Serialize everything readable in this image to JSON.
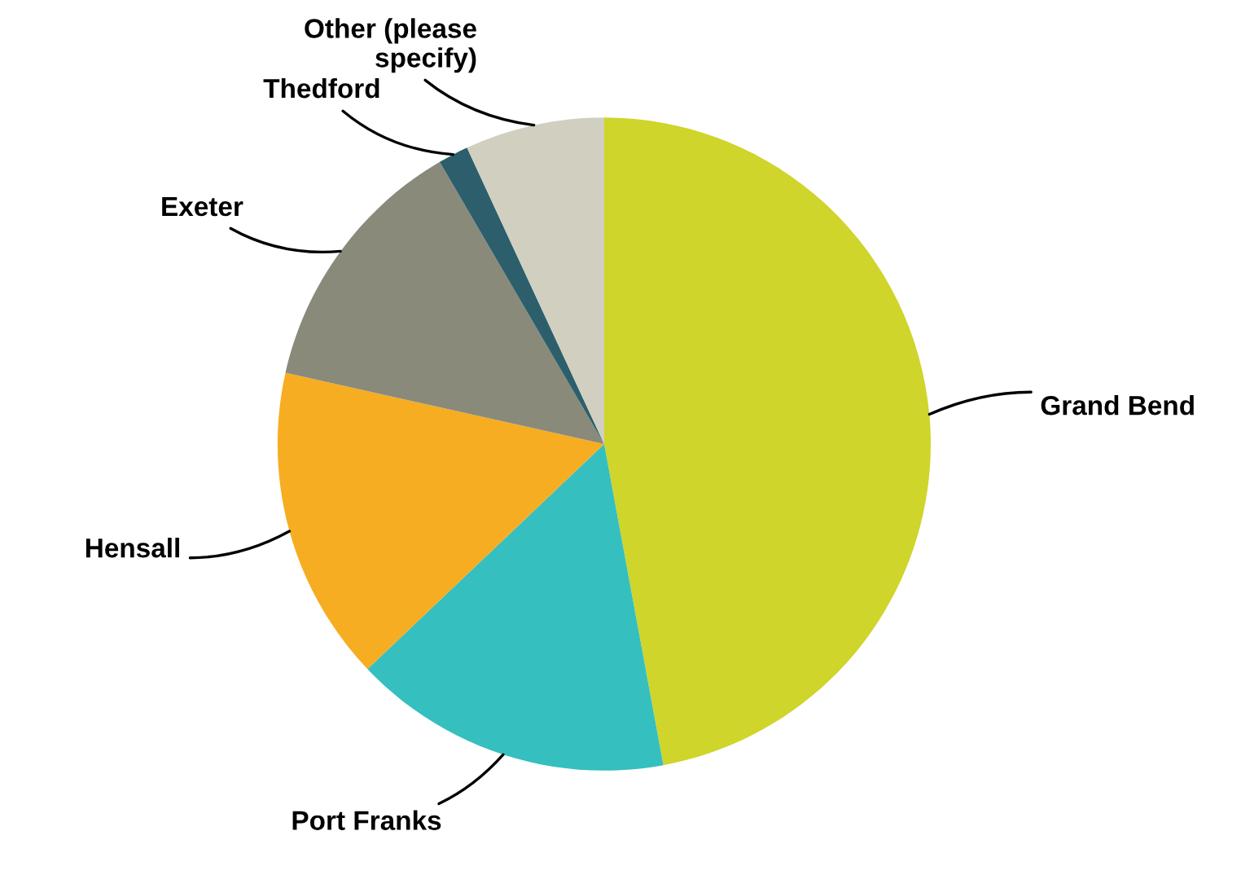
{
  "chart_data": {
    "type": "pie",
    "categories": [
      "Grand Bend",
      "Port Franks",
      "Hensall",
      "Exeter",
      "Thedford",
      "Other (please specify)"
    ],
    "values": [
      47.1,
      15.8,
      15.6,
      13.1,
      1.5,
      6.9
    ],
    "colors": [
      "#cfd52a",
      "#35bfbf",
      "#f6ad22",
      "#898a7a",
      "#2c5f6b",
      "#d0cfc0"
    ],
    "legend": false
  }
}
